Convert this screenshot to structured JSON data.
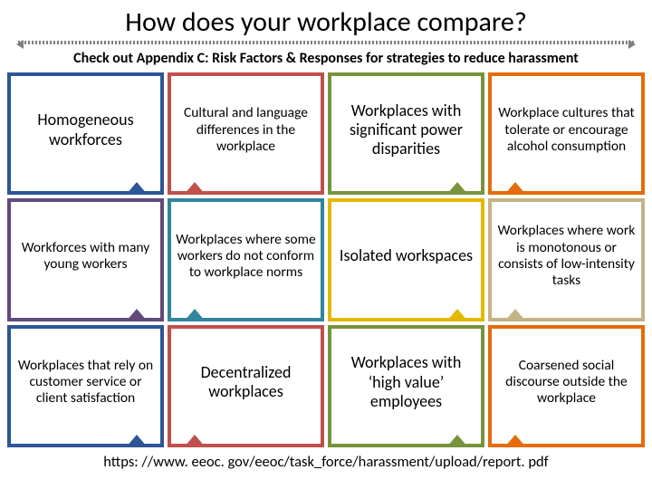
{
  "title": "How does your workplace compare?",
  "subtitle": "Check out Appendix C: Risk Factors & Responses  for strategies to reduce harassment",
  "footer": "https: //www. eeoc. gov/eeoc/task_force/harassment/upload/report. pdf",
  "colors": {
    "blue": "#2e5597",
    "red": "#c0504d",
    "green": "#77933c",
    "orange": "#e46c0a",
    "purple": "#604a7b",
    "teal": "#31859c",
    "yellow": "#e5b800",
    "tan": "#c3b487"
  },
  "cells": [
    {
      "text": "Homogeneous workforces",
      "color": "blue",
      "big": true,
      "notch": "br"
    },
    {
      "text": "Cultural and language differences\nin the workplace",
      "color": "red",
      "big": false,
      "notch": "bl"
    },
    {
      "text": "Workplaces with significant power disparities",
      "color": "green",
      "big": true,
      "notch": "br"
    },
    {
      "text": "Workplace cultures that tolerate or encourage alcohol consumption",
      "color": "orange",
      "big": false,
      "notch": "bl"
    },
    {
      "text": "Workforces with many young workers",
      "color": "purple",
      "big": false,
      "notch": "br"
    },
    {
      "text": "Workplaces where some workers do not conform to workplace norms",
      "color": "teal",
      "big": false,
      "notch": "bl"
    },
    {
      "text": "Isolated workspaces",
      "color": "yellow",
      "big": true,
      "notch": "br"
    },
    {
      "text": "Workplaces where work is monotonous or consists of low-intensity tasks",
      "color": "tan",
      "big": false,
      "notch": "bl"
    },
    {
      "text": "Workplaces that rely on customer service or client satisfaction",
      "color": "blue",
      "big": false,
      "notch": "br"
    },
    {
      "text": "Decentralized workplaces",
      "color": "red",
      "big": true,
      "notch": "bl"
    },
    {
      "text": "Workplaces with ‘high value’ employees",
      "color": "green",
      "big": true,
      "notch": "br"
    },
    {
      "text": "Coarsened social discourse outside the workplace",
      "color": "orange",
      "big": false,
      "notch": "bl"
    }
  ]
}
